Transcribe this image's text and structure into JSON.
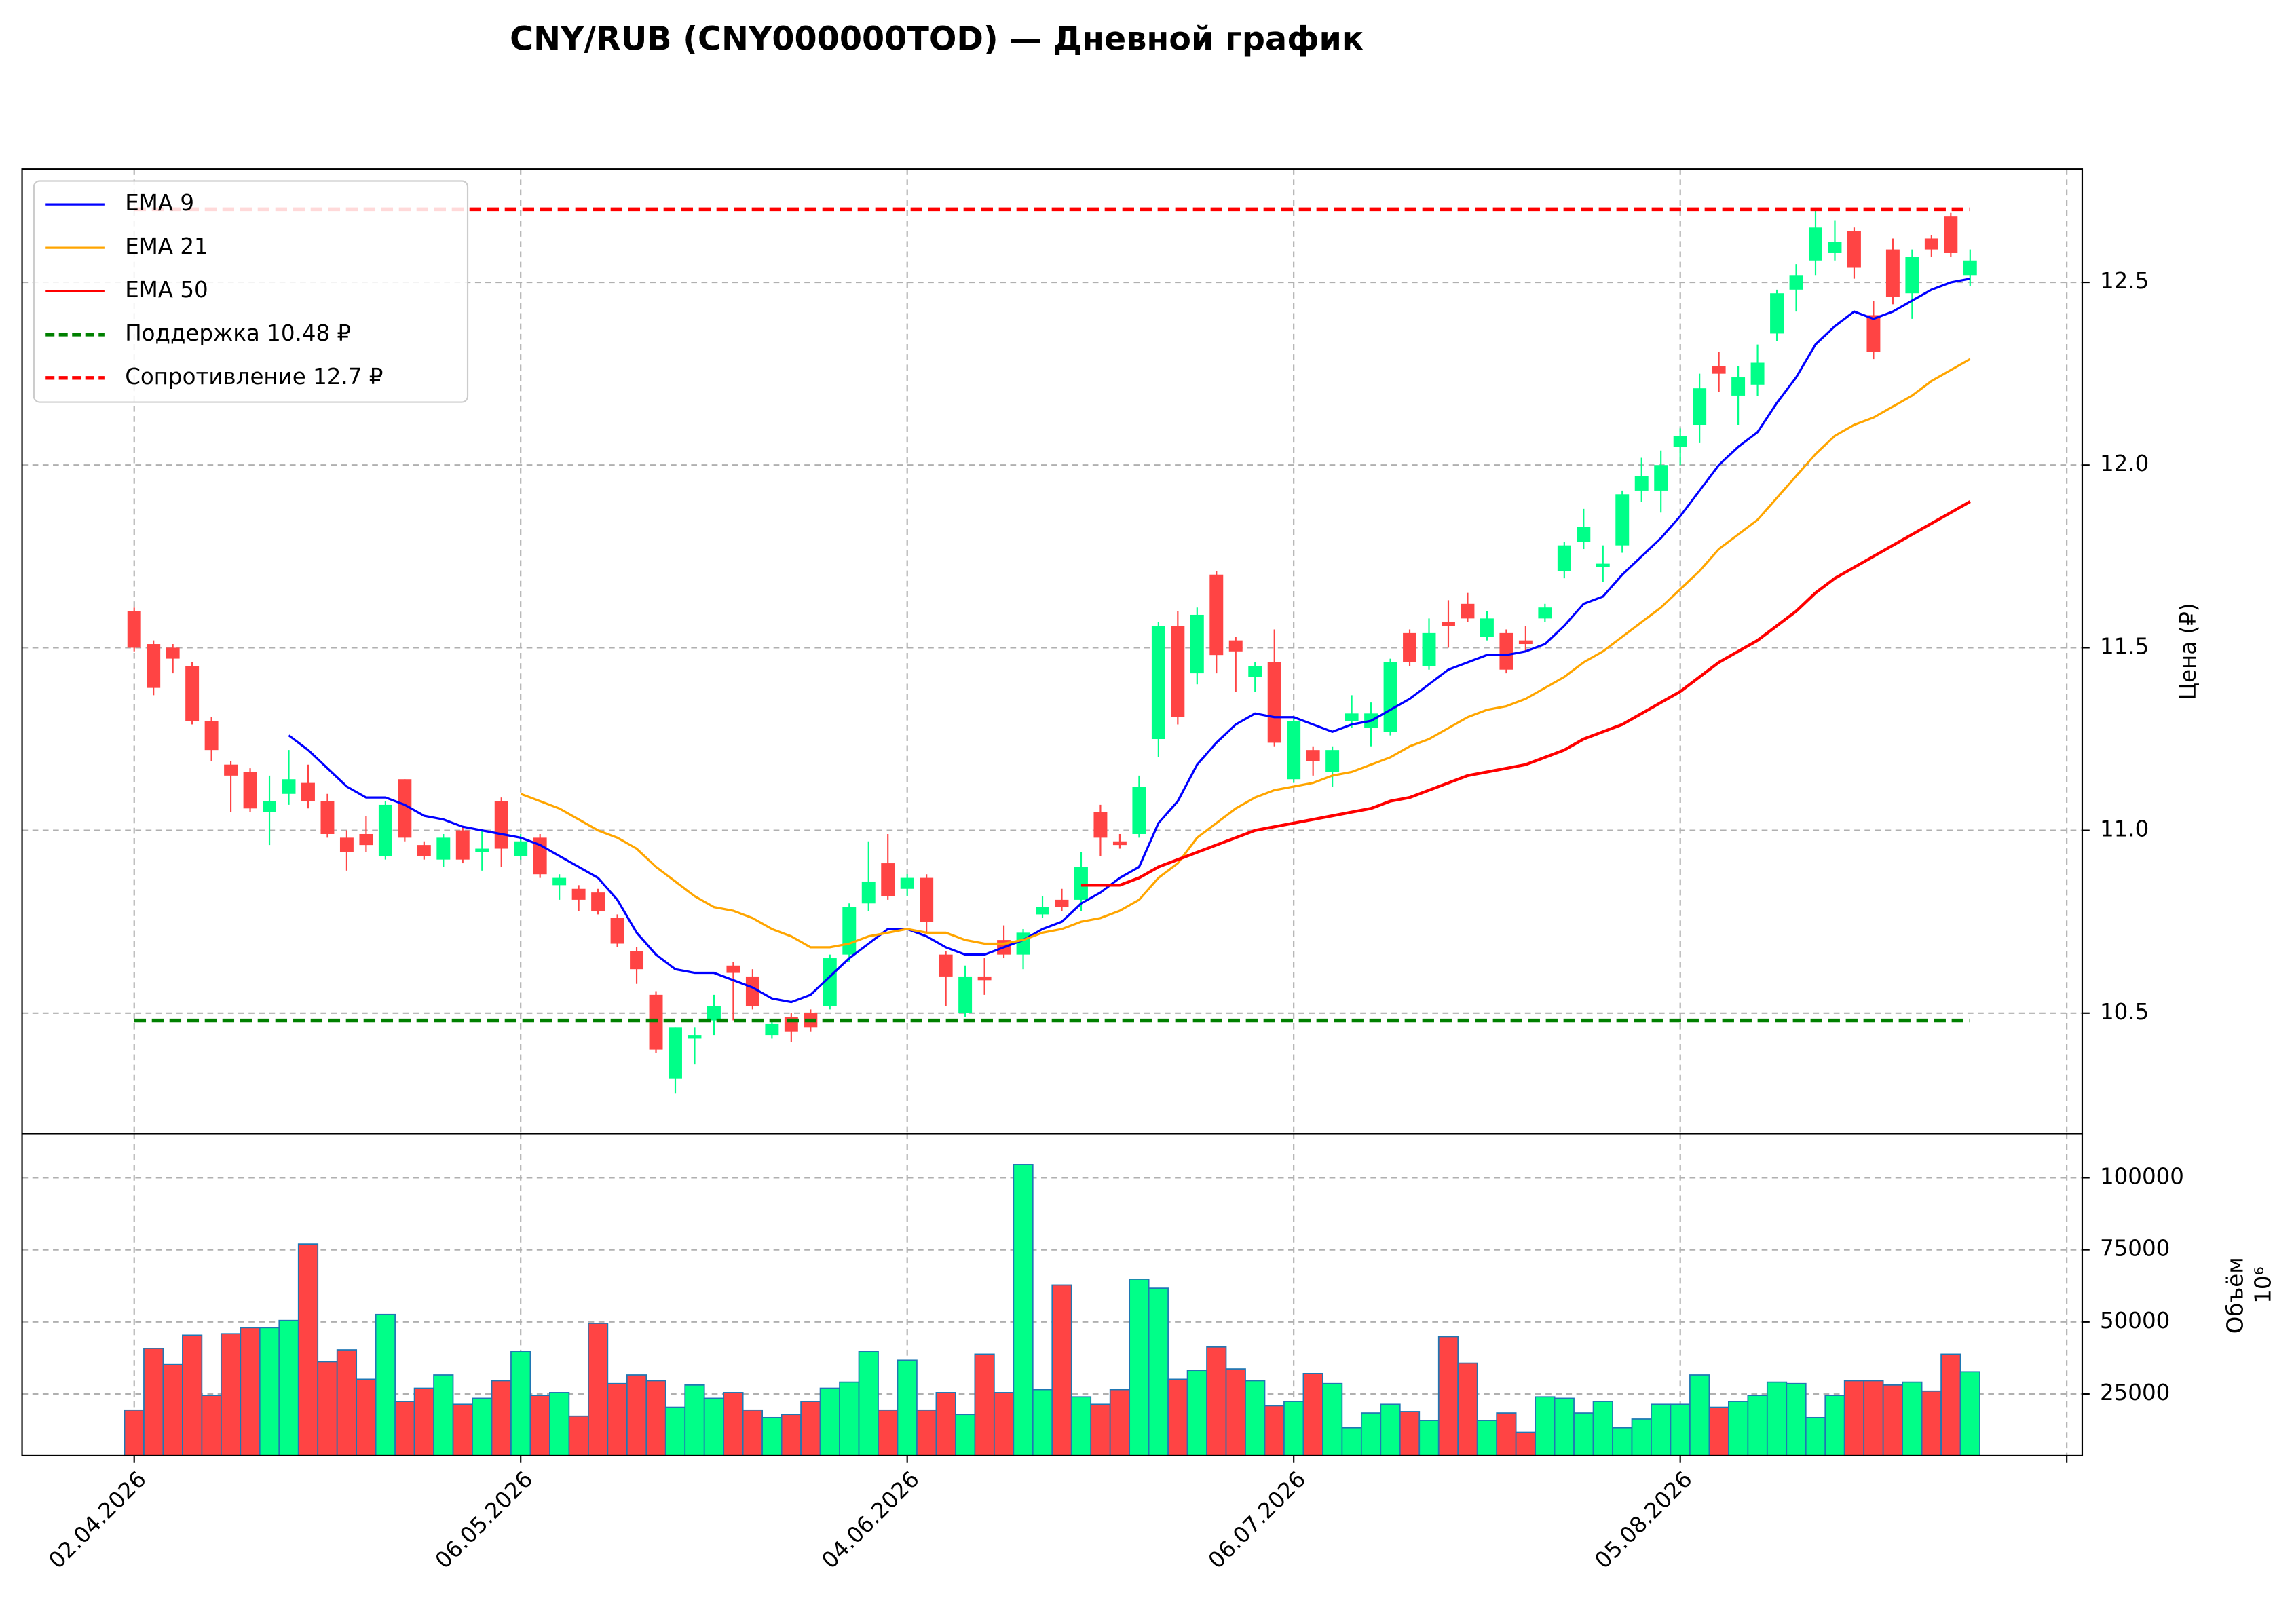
{
  "chart_data": [
    {
      "type": "candlestick",
      "title": "CNY/RUB (CNY000000TOD) — Дневной график",
      "ylabel": "Цена (₽)",
      "x": [
        0,
        1,
        2,
        3,
        4,
        5,
        6,
        7,
        8,
        9,
        10,
        11,
        12,
        13,
        14,
        15,
        16,
        17,
        18,
        19,
        20,
        21,
        22,
        23,
        24,
        25,
        26,
        27,
        28,
        29,
        30,
        31,
        32,
        33,
        34,
        35,
        36,
        37,
        38,
        39,
        40,
        41,
        42,
        43,
        44,
        45,
        46,
        47,
        48,
        49,
        50,
        51,
        52,
        53,
        54,
        55,
        56,
        57,
        58,
        59,
        60,
        61,
        62,
        63,
        64,
        65,
        66,
        67,
        68,
        69,
        70,
        71,
        72,
        73,
        74,
        75,
        76,
        77,
        78,
        79,
        80,
        81,
        82,
        83,
        84,
        85,
        86,
        87,
        88,
        89,
        90,
        91,
        92,
        93,
        94,
        95
      ],
      "open": [
        11.6,
        11.51,
        11.5,
        11.45,
        11.3,
        11.18,
        11.16,
        11.05,
        11.1,
        11.13,
        11.08,
        10.98,
        10.99,
        10.93,
        11.14,
        10.96,
        10.92,
        11.0,
        10.94,
        11.08,
        10.93,
        10.98,
        10.85,
        10.84,
        10.83,
        10.76,
        10.67,
        10.55,
        10.32,
        10.43,
        10.48,
        10.63,
        10.6,
        10.44,
        10.49,
        10.5,
        10.52,
        10.66,
        10.8,
        10.91,
        10.84,
        10.87,
        10.66,
        10.5,
        10.6,
        10.7,
        10.66,
        10.77,
        10.81,
        10.81,
        11.05,
        10.97,
        10.99,
        11.25,
        11.56,
        11.43,
        11.7,
        11.52,
        11.42,
        11.46,
        11.14,
        11.22,
        11.16,
        11.3,
        11.28,
        11.27,
        11.54,
        11.45,
        11.57,
        11.62,
        11.53,
        11.54,
        11.52,
        11.58,
        11.71,
        11.79,
        11.72,
        11.78,
        11.93,
        11.93,
        12.05,
        12.11,
        12.27,
        12.19,
        12.22,
        12.36,
        12.48,
        12.56,
        12.58,
        12.64,
        12.41,
        12.59,
        12.47,
        12.62,
        12.68,
        12.52
      ],
      "high": [
        11.61,
        11.52,
        11.51,
        11.46,
        11.31,
        11.19,
        11.17,
        11.15,
        11.22,
        11.18,
        11.1,
        11.0,
        11.04,
        11.08,
        11.14,
        10.97,
        10.99,
        11.01,
        11.0,
        11.09,
        10.99,
        10.99,
        10.88,
        10.85,
        10.84,
        10.77,
        10.68,
        10.56,
        10.46,
        10.46,
        10.55,
        10.64,
        10.62,
        10.48,
        10.5,
        10.51,
        10.66,
        10.8,
        10.97,
        10.99,
        10.88,
        10.88,
        10.67,
        10.63,
        10.65,
        10.74,
        10.73,
        10.82,
        10.84,
        10.94,
        11.07,
        10.99,
        11.15,
        11.57,
        11.6,
        11.61,
        11.71,
        11.53,
        11.46,
        11.55,
        11.31,
        11.23,
        11.23,
        11.37,
        11.35,
        11.47,
        11.55,
        11.58,
        11.63,
        11.65,
        11.6,
        11.55,
        11.56,
        11.62,
        11.79,
        11.88,
        11.78,
        11.93,
        12.02,
        12.04,
        12.1,
        12.25,
        12.31,
        12.27,
        12.33,
        12.48,
        12.55,
        12.7,
        12.67,
        12.65,
        12.45,
        12.62,
        12.59,
        12.63,
        12.69,
        12.59
      ],
      "low": [
        11.49,
        11.37,
        11.43,
        11.29,
        11.19,
        11.05,
        11.05,
        10.96,
        11.07,
        11.06,
        10.98,
        10.89,
        10.94,
        10.92,
        10.97,
        10.92,
        10.9,
        10.91,
        10.89,
        10.9,
        10.92,
        10.87,
        10.81,
        10.78,
        10.77,
        10.68,
        10.58,
        10.39,
        10.28,
        10.36,
        10.44,
        10.48,
        10.51,
        10.43,
        10.42,
        10.45,
        10.51,
        10.64,
        10.78,
        10.81,
        10.82,
        10.72,
        10.52,
        10.49,
        10.55,
        10.65,
        10.62,
        10.76,
        10.78,
        10.78,
        10.93,
        10.95,
        10.98,
        11.2,
        11.29,
        11.4,
        11.43,
        11.38,
        11.38,
        11.23,
        11.13,
        11.15,
        11.12,
        11.28,
        11.23,
        11.26,
        11.45,
        11.44,
        11.5,
        11.57,
        11.52,
        11.43,
        11.49,
        11.57,
        11.69,
        11.77,
        11.68,
        11.76,
        11.9,
        11.87,
        12.0,
        12.06,
        12.2,
        12.11,
        12.19,
        12.34,
        12.42,
        12.52,
        12.56,
        12.51,
        12.29,
        12.44,
        12.4,
        12.57,
        12.57,
        12.49
      ],
      "close": [
        11.5,
        11.39,
        11.47,
        11.3,
        11.22,
        11.15,
        11.06,
        11.08,
        11.14,
        11.08,
        10.99,
        10.94,
        10.96,
        11.07,
        10.98,
        10.93,
        10.98,
        10.92,
        10.95,
        10.95,
        10.97,
        10.88,
        10.87,
        10.81,
        10.78,
        10.69,
        10.62,
        10.4,
        10.46,
        10.44,
        10.52,
        10.61,
        10.52,
        10.47,
        10.45,
        10.46,
        10.65,
        10.79,
        10.86,
        10.82,
        10.87,
        10.75,
        10.6,
        10.6,
        10.59,
        10.66,
        10.72,
        10.79,
        10.79,
        10.9,
        10.98,
        10.96,
        11.12,
        11.56,
        11.31,
        11.59,
        11.48,
        11.49,
        11.45,
        11.24,
        11.3,
        11.19,
        11.22,
        11.32,
        11.32,
        11.46,
        11.46,
        11.54,
        11.56,
        11.58,
        11.58,
        11.44,
        11.51,
        11.61,
        11.78,
        11.83,
        11.73,
        11.92,
        11.97,
        12.0,
        12.08,
        12.21,
        12.25,
        12.24,
        12.28,
        12.47,
        12.52,
        12.65,
        12.61,
        12.54,
        12.31,
        12.46,
        12.57,
        12.59,
        12.58,
        12.56
      ],
      "up_color": "#00ff88",
      "down_color": "#ff4444",
      "series": [
        {
          "name": "EMA 9",
          "color": "#0000ff",
          "values": [
            null,
            null,
            null,
            null,
            null,
            null,
            null,
            null,
            11.26,
            11.22,
            11.17,
            11.12,
            11.09,
            11.09,
            11.07,
            11.04,
            11.03,
            11.01,
            11.0,
            10.99,
            10.98,
            10.96,
            10.93,
            10.9,
            10.87,
            10.81,
            10.72,
            10.66,
            10.62,
            10.61,
            10.61,
            10.59,
            10.57,
            10.54,
            10.53,
            10.55,
            10.6,
            10.65,
            10.69,
            10.73,
            10.73,
            10.71,
            10.68,
            10.66,
            10.66,
            10.68,
            10.7,
            10.73,
            10.75,
            10.8,
            10.83,
            10.87,
            10.9,
            11.02,
            11.08,
            11.18,
            11.24,
            11.29,
            11.32,
            11.31,
            11.31,
            11.29,
            11.27,
            11.29,
            11.3,
            11.33,
            11.36,
            11.4,
            11.44,
            11.46,
            11.48,
            11.48,
            11.49,
            11.51,
            11.56,
            11.62,
            11.64,
            11.7,
            11.75,
            11.8,
            11.86,
            11.93,
            12.0,
            12.05,
            12.09,
            12.17,
            12.24,
            12.33,
            12.38,
            12.42,
            12.4,
            12.42,
            12.45,
            12.48,
            12.5,
            12.51
          ]
        },
        {
          "name": "EMA 21",
          "color": "#ffa500",
          "values": [
            null,
            null,
            null,
            null,
            null,
            null,
            null,
            null,
            null,
            null,
            null,
            null,
            null,
            null,
            null,
            null,
            null,
            null,
            null,
            null,
            11.1,
            11.08,
            11.06,
            11.03,
            11.0,
            10.98,
            10.95,
            10.9,
            10.86,
            10.82,
            10.79,
            10.78,
            10.76,
            10.73,
            10.71,
            10.68,
            10.68,
            10.69,
            10.71,
            10.72,
            10.73,
            10.72,
            10.72,
            10.7,
            10.69,
            10.69,
            10.7,
            10.72,
            10.73,
            10.75,
            10.76,
            10.78,
            10.81,
            10.87,
            10.91,
            10.98,
            11.02,
            11.06,
            11.09,
            11.11,
            11.12,
            11.13,
            11.15,
            11.16,
            11.18,
            11.2,
            11.23,
            11.25,
            11.28,
            11.31,
            11.33,
            11.34,
            11.36,
            11.39,
            11.42,
            11.46,
            11.49,
            11.53,
            11.57,
            11.61,
            11.66,
            11.71,
            11.77,
            11.81,
            11.85,
            11.91,
            11.97,
            12.03,
            12.08,
            12.11,
            12.13,
            12.16,
            12.19,
            12.23,
            12.26,
            12.29
          ]
        },
        {
          "name": "EMA 50",
          "color": "#ff0000",
          "values": [
            null,
            null,
            null,
            null,
            null,
            null,
            null,
            null,
            null,
            null,
            null,
            null,
            null,
            null,
            null,
            null,
            null,
            null,
            null,
            null,
            null,
            null,
            null,
            null,
            null,
            null,
            null,
            null,
            null,
            null,
            null,
            null,
            null,
            null,
            null,
            null,
            null,
            null,
            null,
            null,
            null,
            null,
            null,
            null,
            null,
            null,
            null,
            null,
            null,
            10.85,
            10.85,
            10.85,
            10.87,
            10.9,
            10.92,
            10.94,
            10.96,
            10.98,
            11.0,
            11.01,
            11.02,
            11.03,
            11.04,
            11.05,
            11.06,
            11.08,
            11.09,
            11.11,
            11.13,
            11.15,
            11.16,
            11.17,
            11.18,
            11.2,
            11.22,
            11.25,
            11.27,
            11.29,
            11.32,
            11.35,
            11.38,
            11.42,
            11.46,
            11.49,
            11.52,
            11.56,
            11.6,
            11.65,
            11.69,
            11.72,
            11.75,
            11.78,
            11.81,
            11.84,
            11.87,
            11.9
          ]
        }
      ],
      "hlines": [
        {
          "name": "Поддержка 10.48 ₽",
          "value": 10.48,
          "color": "#008000"
        },
        {
          "name": "Сопротивление 12.7 ₽",
          "value": 12.7,
          "color": "#ff0000"
        }
      ],
      "xlim": [
        -5.8,
        100.8
      ],
      "ylim": [
        10.17,
        12.81
      ],
      "yticks": [
        10.5,
        {
          "value": 11,
          "label": "11.0"
        },
        11.5,
        {
          "value": 12,
          "label": "12.0"
        },
        12.5
      ],
      "grid": true,
      "legend": "upper left"
    },
    {
      "type": "bar",
      "ylabel": "Объём",
      "offset_text": "10⁶",
      "x": [
        0,
        1,
        2,
        3,
        4,
        5,
        6,
        7,
        8,
        9,
        10,
        11,
        12,
        13,
        14,
        15,
        16,
        17,
        18,
        19,
        20,
        21,
        22,
        23,
        24,
        25,
        26,
        27,
        28,
        29,
        30,
        31,
        32,
        33,
        34,
        35,
        36,
        37,
        38,
        39,
        40,
        41,
        42,
        43,
        44,
        45,
        46,
        47,
        48,
        49,
        50,
        51,
        52,
        53,
        54,
        55,
        56,
        57,
        58,
        59,
        60,
        61,
        62,
        63,
        64,
        65,
        66,
        67,
        68,
        69,
        70,
        71,
        72,
        73,
        74,
        75,
        76,
        77,
        78,
        79,
        80,
        81,
        82,
        83,
        84,
        85,
        86,
        87,
        88,
        89,
        90,
        91,
        92,
        93,
        94,
        95
      ],
      "values": [
        19400,
        40800,
        35200,
        45400,
        24500,
        45900,
        48000,
        48000,
        50500,
        77000,
        36200,
        40300,
        30100,
        52600,
        22400,
        27000,
        31600,
        21400,
        23500,
        29600,
        39800,
        24500,
        25500,
        17300,
        49500,
        28600,
        31600,
        29600,
        20400,
        28100,
        23500,
        25500,
        19400,
        16800,
        17900,
        22400,
        27000,
        29100,
        39800,
        19400,
        36700,
        19400,
        25500,
        17900,
        38800,
        25500,
        104600,
        26500,
        62800,
        24000,
        21400,
        26500,
        64800,
        61700,
        30100,
        33200,
        41300,
        33700,
        29600,
        20900,
        22400,
        32100,
        28600,
        13300,
        18400,
        21400,
        18900,
        15800,
        44900,
        35700,
        15800,
        18400,
        11700,
        24000,
        23500,
        18400,
        22400,
        13300,
        16300,
        21400,
        21400,
        31600,
        20400,
        22400,
        24500,
        29100,
        28600,
        16800,
        24500,
        29600,
        29600,
        28100,
        29100,
        26000,
        38800,
        32700
      ],
      "edgecolor": "#1f77b4",
      "xlim": [
        -5.8,
        100.8
      ],
      "xticks": [
        {
          "value": 0,
          "label": "02.04.2026"
        },
        {
          "value": 20,
          "label": "06.05.2026"
        },
        {
          "value": 40,
          "label": "04.06.2026"
        },
        {
          "value": 60,
          "label": "06.07.2026"
        },
        {
          "value": 80,
          "label": "05.08.2026"
        },
        {
          "value": 100,
          "label": null
        }
      ],
      "ylim": [
        3600,
        115300
      ],
      "yticks": [
        25000,
        50000,
        75000,
        100000
      ],
      "grid": true
    }
  ]
}
